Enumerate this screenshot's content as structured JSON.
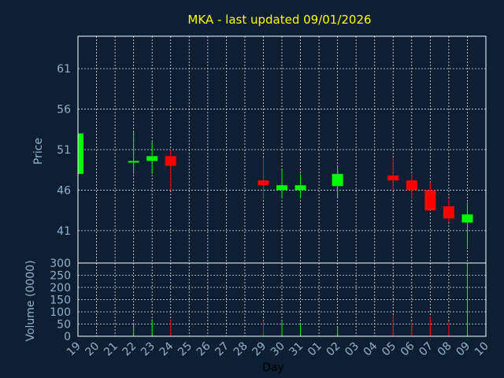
{
  "chart_data": {
    "type": "candlestick",
    "title": "MKA - last updated 09/01/2026",
    "xlabel": "Day",
    "price_panel": {
      "ylabel": "Price",
      "ylim": [
        37,
        65
      ],
      "yticks": [
        41,
        46,
        51,
        56,
        61
      ]
    },
    "volume_panel": {
      "ylabel": "Volume (0000)",
      "ylim": [
        0,
        300
      ],
      "yticks": [
        0,
        50,
        100,
        150,
        200,
        250,
        300
      ]
    },
    "x_labels": [
      "19",
      "20",
      "21",
      "22",
      "23",
      "24",
      "25",
      "26",
      "27",
      "28",
      "29",
      "30",
      "31",
      "01",
      "02",
      "03",
      "04",
      "05",
      "06",
      "07",
      "08",
      "09",
      "10"
    ],
    "grid": true,
    "colors": {
      "up": "#00ff00",
      "down": "#ff0000",
      "title": "#ffff00",
      "axis": "#8fb0cf"
    },
    "candles": [
      {
        "x": 0,
        "open": 48.0,
        "high": 53.0,
        "low": 48.0,
        "close": 53.0,
        "volume": 0
      },
      {
        "x": 3,
        "open": 49.5,
        "high": 53.2,
        "low": 48.0,
        "close": 49.6,
        "volume": 50
      },
      {
        "x": 4,
        "open": 49.6,
        "high": 52.0,
        "low": 48.0,
        "close": 50.2,
        "volume": 70
      },
      {
        "x": 5,
        "open": 50.2,
        "high": 51.0,
        "low": 46.0,
        "close": 49.0,
        "volume": 70
      },
      {
        "x": 10,
        "open": 47.2,
        "high": 50.0,
        "low": 45.0,
        "close": 46.6,
        "volume": 65
      },
      {
        "x": 11,
        "open": 46.0,
        "high": 48.5,
        "low": 45.0,
        "close": 46.6,
        "volume": 60
      },
      {
        "x": 12,
        "open": 46.0,
        "high": 48.0,
        "low": 45.0,
        "close": 46.6,
        "volume": 50
      },
      {
        "x": 14,
        "open": 46.5,
        "high": 49.0,
        "low": 45.0,
        "close": 48.0,
        "volume": 40
      },
      {
        "x": 17,
        "open": 47.8,
        "high": 50.0,
        "low": 46.0,
        "close": 47.2,
        "volume": 85
      },
      {
        "x": 18,
        "open": 47.2,
        "high": 48.0,
        "low": 45.0,
        "close": 46.0,
        "volume": 55
      },
      {
        "x": 19,
        "open": 46.0,
        "high": 47.0,
        "low": 43.5,
        "close": 43.5,
        "volume": 80
      },
      {
        "x": 20,
        "open": 44.0,
        "high": 45.0,
        "low": 42.0,
        "close": 42.5,
        "volume": 60
      },
      {
        "x": 21,
        "open": 42.0,
        "high": 44.5,
        "low": 39.0,
        "close": 43.0,
        "volume": 300
      }
    ]
  }
}
